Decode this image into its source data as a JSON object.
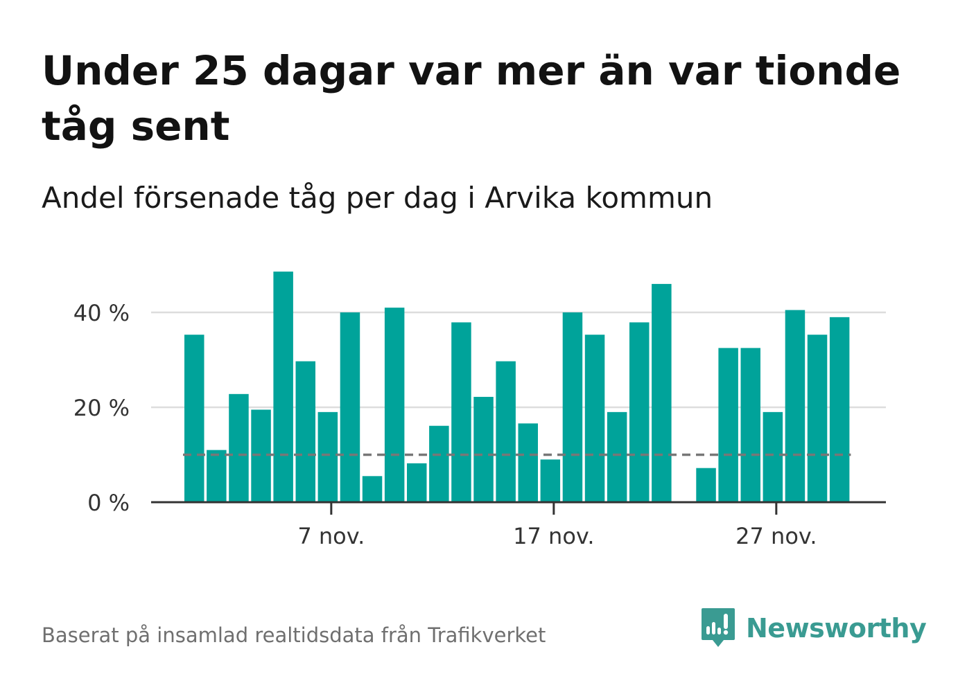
{
  "header": {
    "title": "Under 25 dagar var mer än var tionde tåg sent",
    "subtitle": "Andel försenade tåg per dag i Arvika kommun"
  },
  "footer": {
    "source": "Baserat på insamlad realtidsdata från Trafikverket",
    "brand_name": "Newsworthy",
    "brand_icon": "bar-chart-speech-bubble-icon"
  },
  "colors": {
    "bar": "#00a39a",
    "gridline": "#dddddd",
    "axis": "#333333",
    "reference_line": "#777777",
    "tick_text": "#333333",
    "brand": "#3a9b92",
    "source_text": "#6f6f6f"
  },
  "chart_data": {
    "type": "bar",
    "title": "Under 25 dagar var mer än var tionde tåg sent",
    "subtitle": "Andel försenade tåg per dag i Arvika kommun",
    "x_unit": "day of November",
    "x": [
      1,
      2,
      3,
      4,
      5,
      6,
      7,
      8,
      9,
      10,
      11,
      12,
      13,
      14,
      15,
      16,
      17,
      18,
      19,
      20,
      21,
      22,
      23,
      24,
      25,
      26,
      27,
      28,
      29,
      30
    ],
    "values": [
      35.3,
      11,
      22.8,
      19.5,
      48.6,
      29.7,
      19,
      40,
      5.5,
      41,
      8.2,
      16.1,
      37.9,
      22.2,
      29.7,
      16.6,
      9,
      40,
      35.3,
      19,
      37.9,
      46,
      0,
      7.2,
      32.5,
      32.5,
      19,
      40.5,
      35.3,
      39
    ],
    "xticks": [
      {
        "day": 7,
        "label": "7 nov."
      },
      {
        "day": 17,
        "label": "17 nov."
      },
      {
        "day": 27,
        "label": "27 nov."
      }
    ],
    "yticks": [
      {
        "value": 0,
        "label": "0 %"
      },
      {
        "value": 20,
        "label": "20 %"
      },
      {
        "value": 40,
        "label": "40 %"
      }
    ],
    "ylim": [
      0,
      50
    ],
    "reference_line": {
      "value": 10,
      "style": "dashed"
    },
    "grid": true,
    "legend": "none"
  }
}
